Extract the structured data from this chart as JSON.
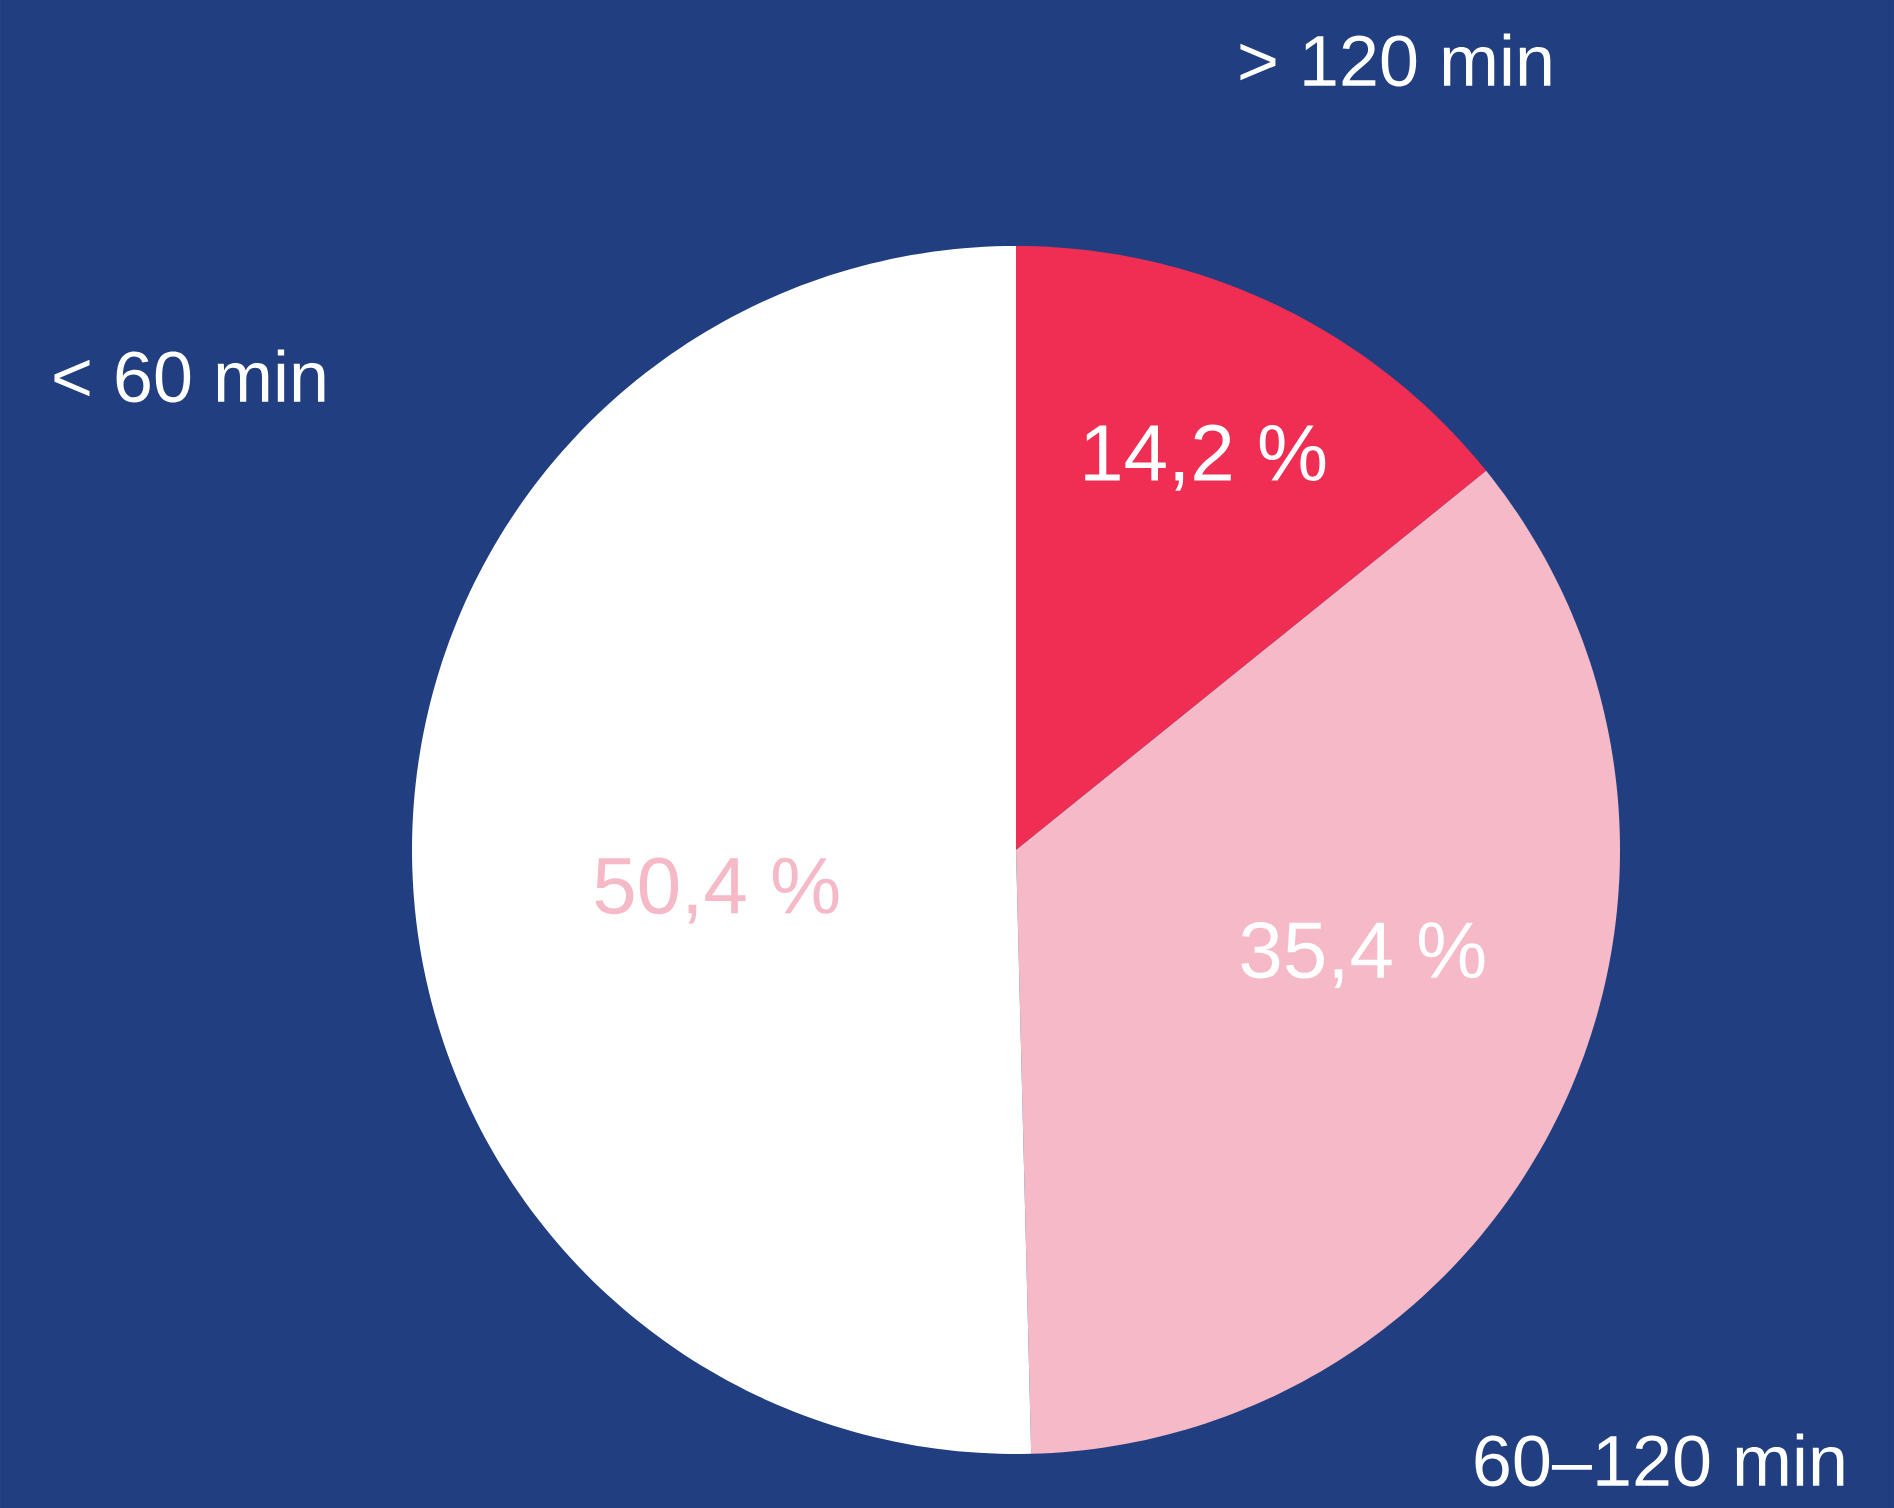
{
  "chart_data": {
    "type": "pie",
    "categories": [
      "> 120 min",
      "60–120 min",
      "< 60 min"
    ],
    "values": [
      14.2,
      35.4,
      50.4
    ],
    "colors": [
      "#f02d52",
      "#f5b9c8",
      "#ffffff"
    ],
    "value_labels": [
      "14,2 %",
      "35,4 %",
      "50,4 %"
    ]
  }
}
